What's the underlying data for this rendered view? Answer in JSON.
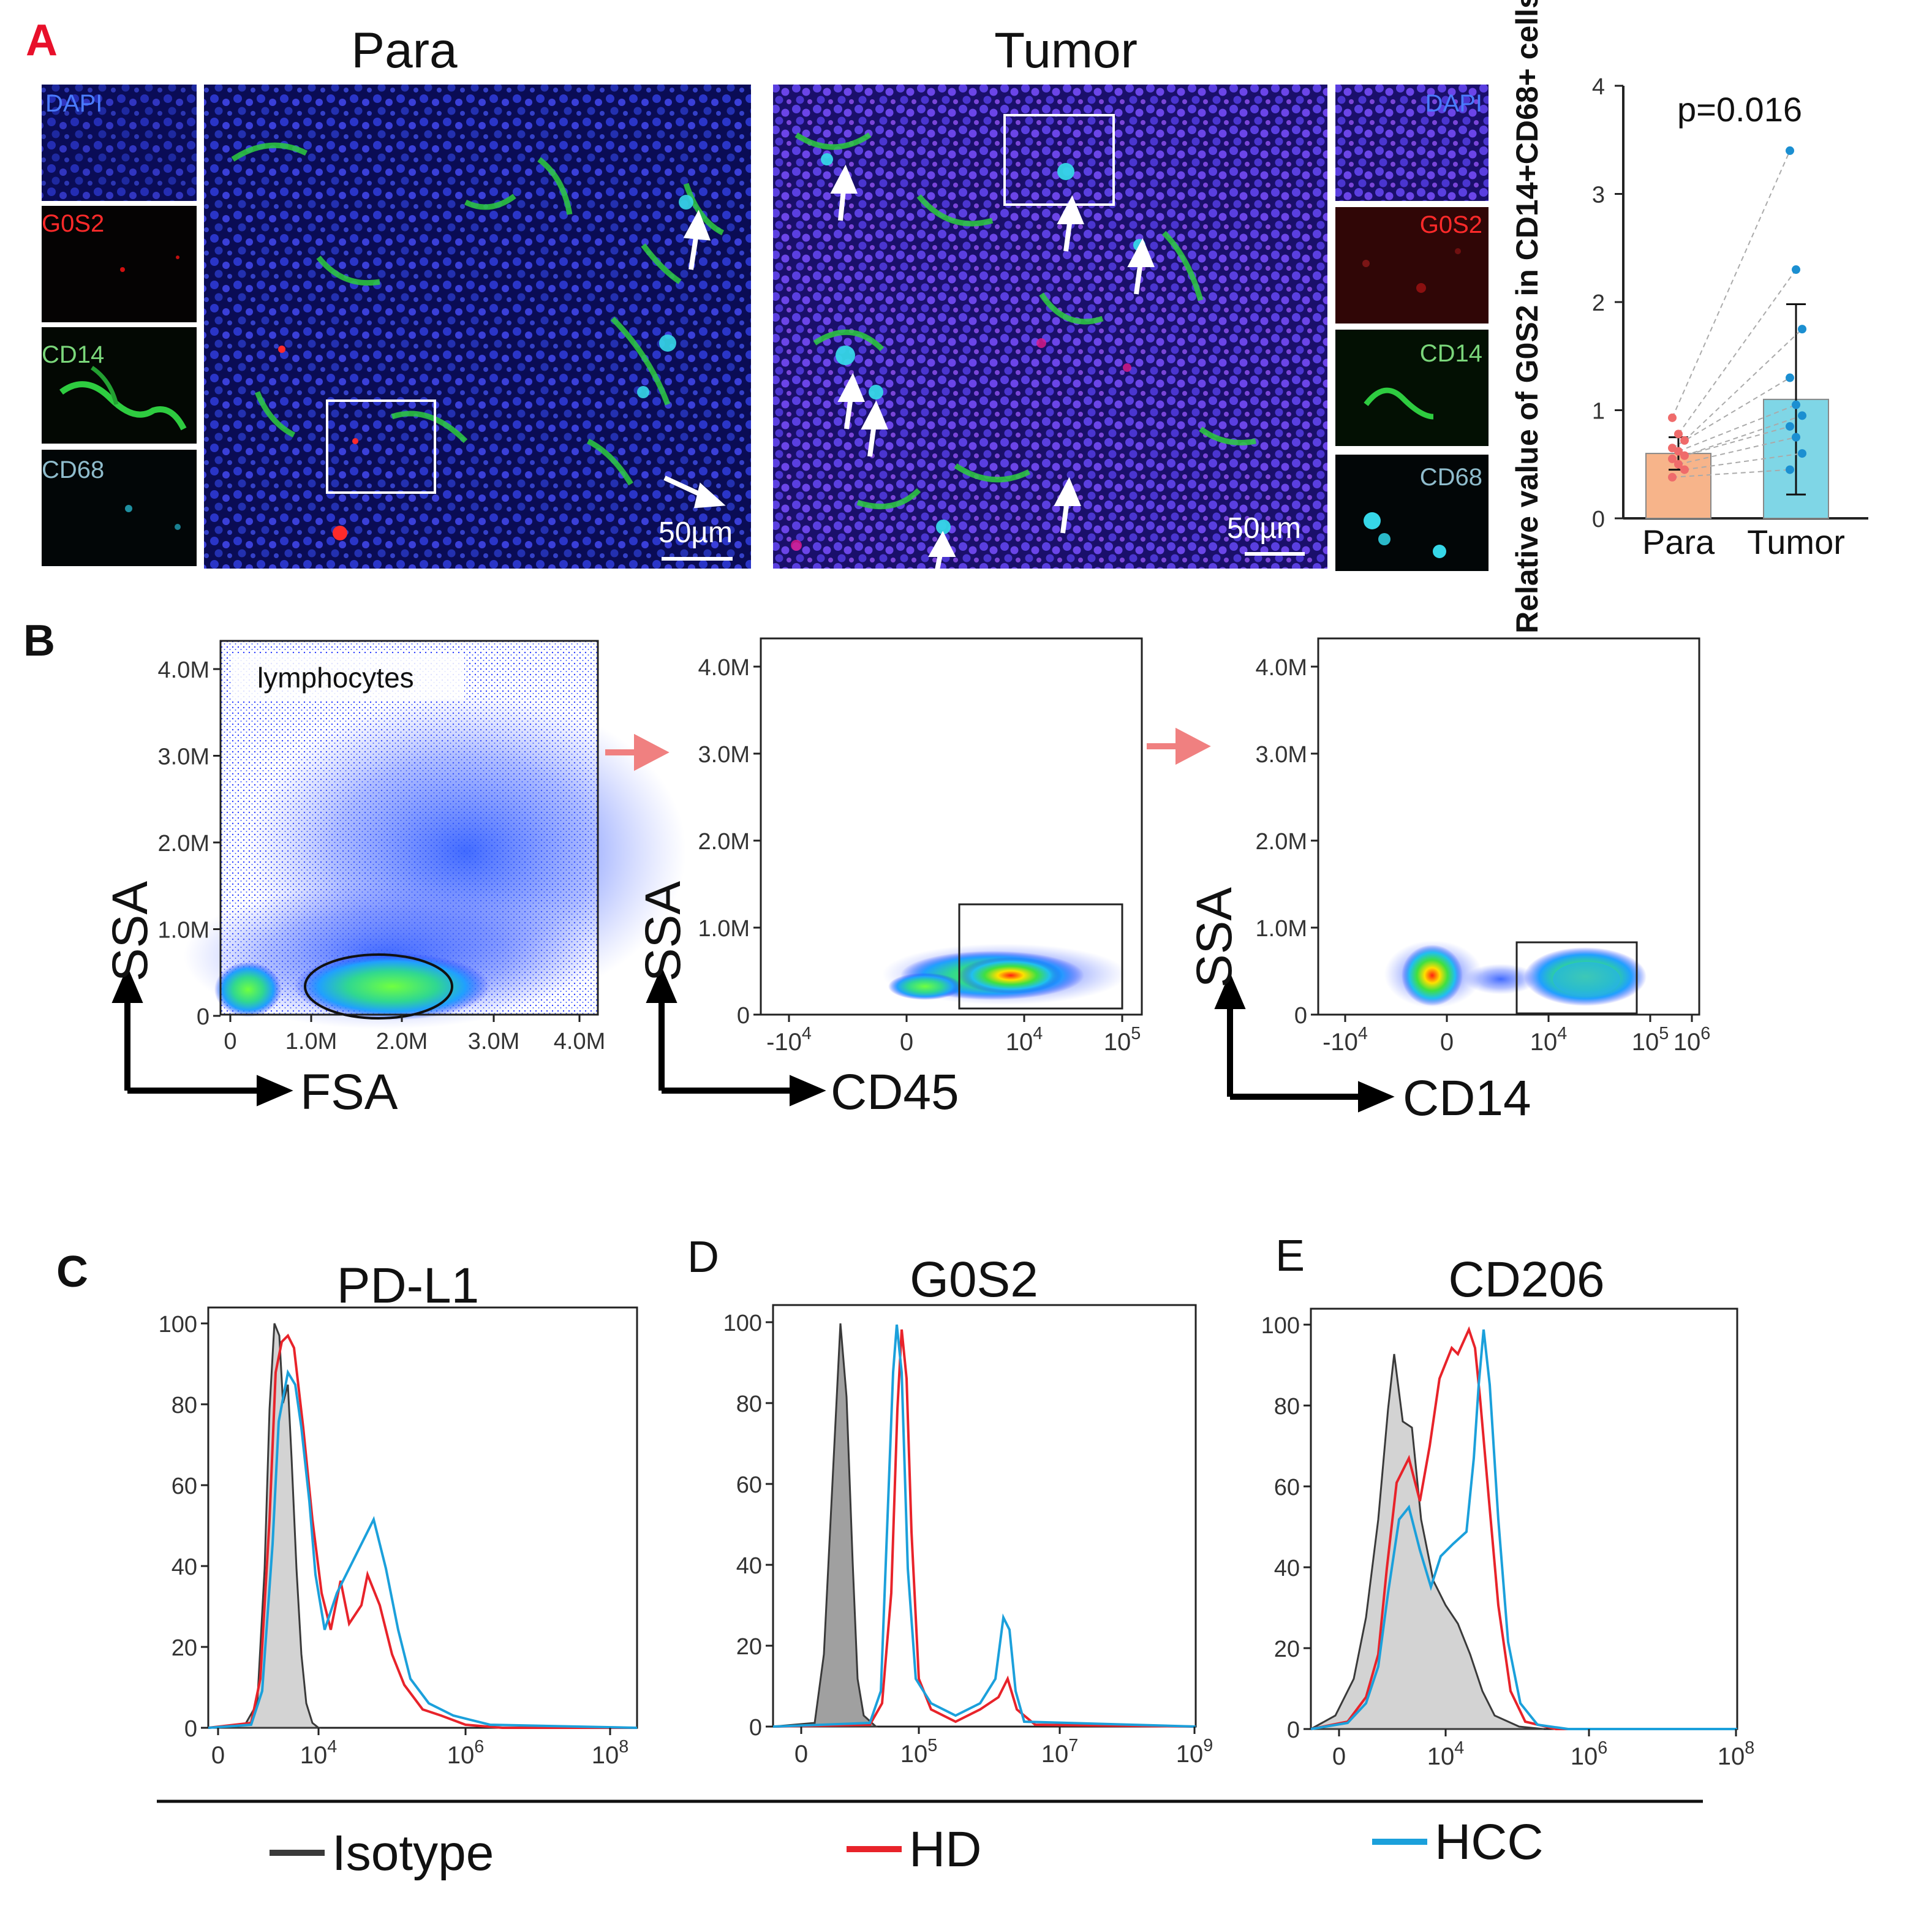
{
  "panel_letters": {
    "a": "A",
    "b": "B",
    "c": "C",
    "d": "D",
    "e": "E"
  },
  "panel_a": {
    "para_title": "Para",
    "tumor_title": "Tumor",
    "channels": [
      "DAPI",
      "G0S2",
      "CD14",
      "CD68"
    ],
    "scale_bar": "50µm",
    "channel_colors": {
      "DAPI": "#3a6bff",
      "G0S2": "#ff2a2a",
      "CD14": "#2ecc40",
      "CD68": "#36d7e8"
    }
  },
  "panel_b": {
    "gate_label": "lymphocytes",
    "ssa_ticks": [
      "4.0M",
      "3.0M",
      "2.0M",
      "1.0M",
      "0"
    ],
    "fsa_ticks": [
      "0",
      "1.0M",
      "2.0M",
      "3.0M",
      "4.0M"
    ],
    "cd45_ticks": {
      "base": [
        "-10",
        "0",
        "10",
        "10"
      ],
      "exp": [
        "4",
        "",
        "4",
        "5"
      ]
    },
    "cd14_ticks": {
      "base": [
        "-10",
        "0",
        "10",
        "10",
        "10"
      ],
      "exp": [
        "4",
        "",
        "4",
        "5",
        "6"
      ]
    },
    "plot1": {
      "x": "FSA",
      "y": "SSA"
    },
    "plot2": {
      "x": "CD45",
      "y": "SSA"
    },
    "plot3": {
      "x": "CD14",
      "y": "SSA"
    }
  },
  "histograms": {
    "c_title": "PD-L1",
    "d_title": "G0S2",
    "e_title": "CD206",
    "y_ticks": [
      "100",
      "80",
      "60",
      "40",
      "20",
      "0"
    ],
    "c_x": {
      "base": [
        "0",
        "10",
        "10",
        "10"
      ],
      "exp": [
        "",
        "4",
        "6",
        "8"
      ]
    },
    "d_x": {
      "base": [
        "0",
        "10",
        "10",
        "10"
      ],
      "exp": [
        "",
        "5",
        "7",
        "9"
      ]
    },
    "e_x": {
      "base": [
        "0",
        "10",
        "10",
        "10"
      ],
      "exp": [
        "",
        "4",
        "6",
        "8"
      ]
    }
  },
  "legend": {
    "items": [
      {
        "label": "Isotype",
        "color": "#3a3a3a"
      },
      {
        "label": "HD",
        "color": "#e8232a"
      },
      {
        "label": "HCC",
        "color": "#1ba0db"
      }
    ]
  },
  "chart_data": [
    {
      "type": "bar",
      "title": "p=0.016",
      "ylabel": "Relative value of G0S2 in CD14+CD68+ cells",
      "xlabel": "",
      "categories": [
        "Para",
        "Tumor"
      ],
      "values": [
        0.6,
        1.1
      ],
      "error": [
        0.15,
        0.88
      ],
      "ylim": [
        0,
        4
      ],
      "yticks": [
        "0",
        "1",
        "2",
        "3",
        "4"
      ],
      "colors": [
        "#f7b48a",
        "#7fd6e6"
      ],
      "points": {
        "Para": [
          0.93,
          0.78,
          0.72,
          0.65,
          0.62,
          0.58,
          0.55,
          0.5,
          0.45,
          0.38
        ],
        "Tumor": [
          3.4,
          2.3,
          1.75,
          1.3,
          1.05,
          0.95,
          0.85,
          0.75,
          0.6,
          0.45
        ]
      },
      "point_colors": [
        "#ef6b6b",
        "#1b8fd1"
      ]
    }
  ]
}
